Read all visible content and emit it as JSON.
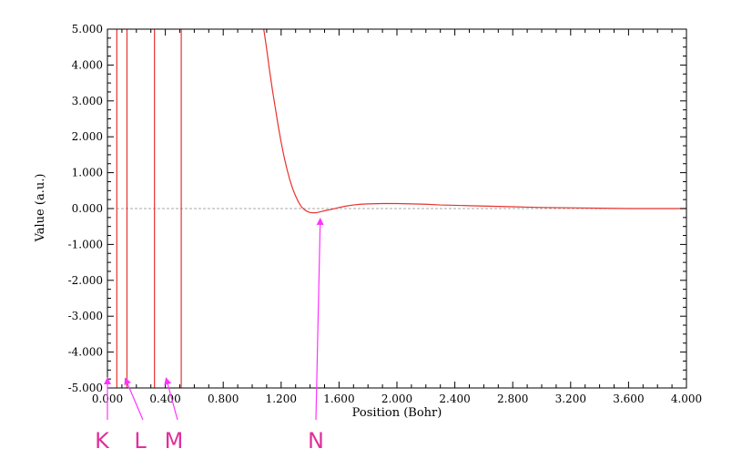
{
  "chart_data": {
    "type": "line",
    "title": "",
    "xlabel": "Position (Bohr)",
    "ylabel": "Value (a.u.)",
    "xlim": [
      0.0,
      4.0
    ],
    "ylim": [
      -5.0,
      5.0
    ],
    "x_ticks": [
      "0.000",
      "0.400",
      "0.800",
      "1.200",
      "1.600",
      "2.000",
      "2.400",
      "2.800",
      "3.200",
      "3.600",
      "4.000"
    ],
    "y_ticks": [
      "5.000",
      "4.000",
      "3.000",
      "2.000",
      "1.000",
      "0.000",
      "-1.000",
      "-2.000",
      "-3.000",
      "-4.000",
      "-5.000"
    ],
    "grid": false,
    "zero_line": true,
    "series": [
      {
        "color": "#e8322e",
        "x": [
          1.08,
          1.1,
          1.12,
          1.14,
          1.16,
          1.18,
          1.2,
          1.22,
          1.24,
          1.26,
          1.28,
          1.3,
          1.32,
          1.34,
          1.36,
          1.38,
          1.4,
          1.42,
          1.44,
          1.46,
          1.48,
          1.5,
          1.55,
          1.6,
          1.65,
          1.7,
          1.75,
          1.8,
          1.9,
          2.0,
          2.1,
          2.2,
          2.3,
          2.4,
          2.5,
          2.6,
          2.7,
          2.8,
          2.9,
          3.0,
          3.2,
          3.4,
          3.6,
          3.8,
          4.0
        ],
        "y": [
          5.0,
          4.45,
          3.85,
          3.3,
          2.8,
          2.3,
          1.85,
          1.45,
          1.1,
          0.8,
          0.55,
          0.35,
          0.18,
          0.05,
          -0.03,
          -0.08,
          -0.11,
          -0.12,
          -0.115,
          -0.1,
          -0.08,
          -0.06,
          -0.02,
          0.03,
          0.07,
          0.1,
          0.12,
          0.13,
          0.14,
          0.14,
          0.13,
          0.12,
          0.1,
          0.09,
          0.08,
          0.07,
          0.06,
          0.05,
          0.04,
          0.03,
          0.02,
          0.01,
          0.0,
          0.0,
          0.0
        ]
      }
    ],
    "vertical_lines_x": [
      0.065,
      0.135,
      0.325,
      0.51
    ]
  },
  "markers": [
    {
      "label": "K",
      "target_x": 0.0,
      "target_y": -5.0
    },
    {
      "label": "L",
      "target_x": 0.13,
      "target_y": -5.0
    },
    {
      "label": "M",
      "target_x": 0.41,
      "target_y": -5.0
    },
    {
      "label": "N",
      "target_x": 1.47,
      "target_y": -0.1
    }
  ],
  "colors": {
    "curve": "#e8322e",
    "arrow": "#ff33ff",
    "marker_text": "#e0309a",
    "zero_line": "#aaaaaa"
  }
}
